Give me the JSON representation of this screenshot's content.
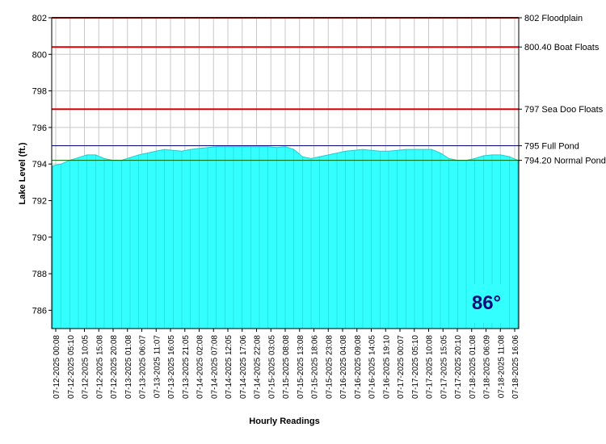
{
  "chart_data": {
    "type": "area",
    "xlabel": "Hourly Readings",
    "ylabel": "Lake Level (ft.)",
    "ylim": [
      785,
      802
    ],
    "yticks": [
      786,
      788,
      790,
      792,
      794,
      796,
      798,
      800,
      802
    ],
    "grid": true,
    "fill_color": "#33ffff",
    "temperature": "86°",
    "x_tick_labels": [
      "07-12-2025 00:08",
      "07-12-2025 05:10",
      "07-12-2025 10:05",
      "07-12-2025 15:08",
      "07-12-2025 20:08",
      "07-13-2025 01:08",
      "07-13-2025 06:07",
      "07-13-2025 11:07",
      "07-13-2025 16:05",
      "07-13-2025 21:05",
      "07-14-2025 02:08",
      "07-14-2025 07:08",
      "07-14-2025 12:05",
      "07-14-2025 17:06",
      "07-14-2025 22:08",
      "07-15-2025 03:05",
      "07-15-2025 08:08",
      "07-15-2025 13:08",
      "07-15-2025 18:06",
      "07-15-2025 23:08",
      "07-16-2025 04:08",
      "07-16-2025 09:08",
      "07-16-2025 14:05",
      "07-16-2025 19:10",
      "07-17-2025 00:07",
      "07-17-2025 05:10",
      "07-17-2025 10:08",
      "07-17-2025 15:05",
      "07-17-2025 20:10",
      "07-18-2025 01:08",
      "07-18-2025 06:09",
      "07-18-2025 11:08",
      "07-18-2025 16:06"
    ],
    "series": [
      {
        "values": [
          793.9,
          794.0,
          794.2,
          794.35,
          794.5,
          794.5,
          794.3,
          794.2,
          794.2,
          794.35,
          794.5,
          794.6,
          794.7,
          794.8,
          794.75,
          794.7,
          794.8,
          794.85,
          794.9,
          794.95,
          794.95,
          794.95,
          794.95,
          794.95,
          794.95,
          794.95,
          794.9,
          794.95,
          794.8,
          794.4,
          794.3,
          794.4,
          794.5,
          794.6,
          794.7,
          794.75,
          794.8,
          794.75,
          794.7,
          794.7,
          794.75,
          794.8,
          794.8,
          794.8,
          794.8,
          794.6,
          794.3,
          794.2,
          794.2,
          794.3,
          794.45,
          794.5,
          794.5,
          794.4,
          794.2
        ]
      }
    ],
    "reference_lines": [
      {
        "value": 802,
        "label": "802 Floodplain",
        "color": "#dd0000"
      },
      {
        "value": 800.4,
        "label": "800.40 Boat Floats",
        "color": "#dd0000"
      },
      {
        "value": 797,
        "label": "797 Sea Doo Floats",
        "color": "#dd0000"
      },
      {
        "value": 795,
        "label": "795 Full Pond",
        "color": "#000080"
      },
      {
        "value": 794.2,
        "label": "794.20 Normal Pond",
        "color": "#006400"
      }
    ]
  }
}
